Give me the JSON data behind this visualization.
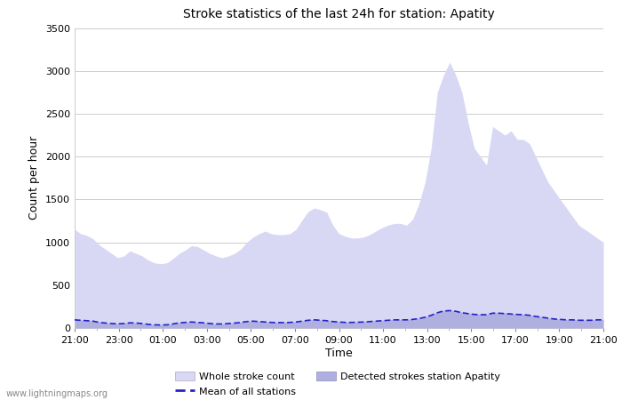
{
  "title": "Stroke statistics of the last 24h for station: Apatity",
  "xlabel": "Time",
  "ylabel": "Count per hour",
  "watermark": "www.lightningmaps.org",
  "x_ticks": [
    "21:00",
    "23:00",
    "01:00",
    "03:00",
    "05:00",
    "07:00",
    "09:00",
    "11:00",
    "13:00",
    "15:00",
    "17:00",
    "19:00",
    "21:00"
  ],
  "ylim": [
    0,
    3500
  ],
  "yticks": [
    0,
    500,
    1000,
    1500,
    2000,
    2500,
    3000,
    3500
  ],
  "whole_stroke_color": "#d8d8f5",
  "detected_stroke_color": "#b0b0e0",
  "mean_line_color": "#2222cc",
  "whole_stroke": [
    1150,
    1100,
    1080,
    1040,
    970,
    920,
    870,
    820,
    840,
    900,
    870,
    840,
    790,
    760,
    750,
    760,
    810,
    870,
    910,
    960,
    950,
    910,
    870,
    840,
    820,
    840,
    870,
    920,
    1000,
    1060,
    1100,
    1130,
    1100,
    1090,
    1090,
    1100,
    1150,
    1260,
    1360,
    1400,
    1380,
    1350,
    1200,
    1100,
    1070,
    1050,
    1050,
    1060,
    1090,
    1130,
    1170,
    1200,
    1220,
    1220,
    1200,
    1270,
    1450,
    1700,
    2100,
    2750,
    2950,
    3100,
    2950,
    2750,
    2400,
    2100,
    2000,
    1900,
    2350,
    2300,
    2250,
    2300,
    2200,
    2200,
    2150,
    2000,
    1850,
    1700,
    1600,
    1500,
    1400,
    1300,
    1200,
    1150,
    1100,
    1050,
    1000
  ],
  "detected_stroke": [
    100,
    95,
    90,
    85,
    70,
    60,
    55,
    50,
    55,
    65,
    60,
    55,
    45,
    40,
    38,
    40,
    50,
    65,
    70,
    75,
    70,
    65,
    55,
    50,
    50,
    55,
    60,
    70,
    80,
    85,
    80,
    75,
    70,
    68,
    68,
    70,
    75,
    85,
    95,
    100,
    95,
    90,
    80,
    75,
    70,
    70,
    72,
    75,
    80,
    85,
    90,
    95,
    100,
    100,
    100,
    105,
    115,
    130,
    155,
    185,
    205,
    210,
    200,
    185,
    175,
    165,
    160,
    160,
    180,
    180,
    175,
    170,
    165,
    160,
    155,
    140,
    130,
    120,
    110,
    105,
    100,
    100,
    95,
    95,
    95,
    100,
    100
  ],
  "mean_line": [
    95,
    90,
    85,
    80,
    65,
    58,
    52,
    48,
    52,
    60,
    58,
    52,
    42,
    37,
    35,
    37,
    47,
    60,
    65,
    70,
    65,
    60,
    52,
    47,
    47,
    52,
    57,
    65,
    75,
    80,
    75,
    70,
    65,
    63,
    63,
    65,
    70,
    80,
    90,
    95,
    90,
    85,
    75,
    70,
    65,
    65,
    67,
    70,
    75,
    80,
    85,
    90,
    95,
    95,
    95,
    100,
    110,
    125,
    148,
    178,
    198,
    203,
    195,
    178,
    168,
    158,
    155,
    155,
    173,
    173,
    168,
    163,
    158,
    155,
    148,
    135,
    125,
    115,
    105,
    100,
    95,
    95,
    90,
    90,
    90,
    95,
    95
  ]
}
